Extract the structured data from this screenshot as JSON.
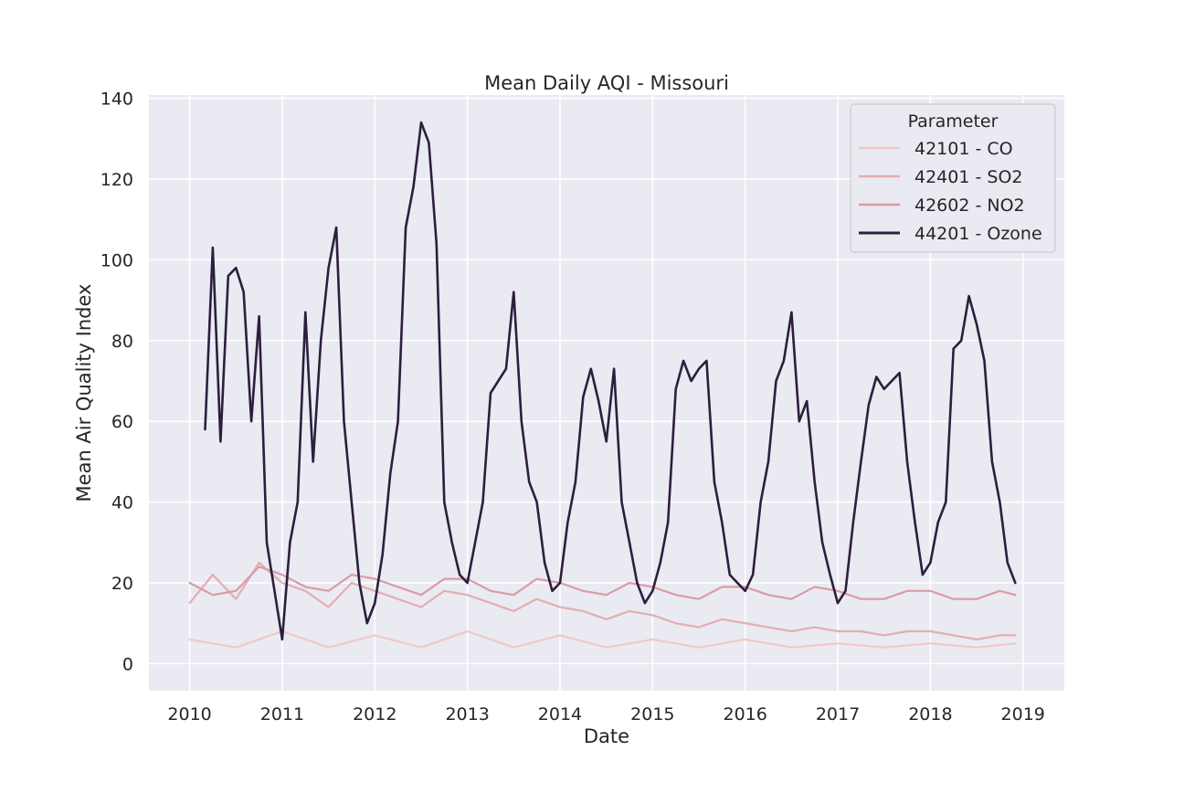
{
  "chart_data": {
    "type": "line",
    "title": "Mean Daily AQI - Missouri",
    "xlabel": "Date",
    "ylabel": "Mean Air Quality Index",
    "xlim": [
      "2009-07-23",
      "2019-06-12"
    ],
    "ylim": [
      -6.7,
      140.8
    ],
    "x_ticks": [
      "2010",
      "2011",
      "2012",
      "2013",
      "2014",
      "2015",
      "2016",
      "2017",
      "2018",
      "2019"
    ],
    "y_ticks": [
      "0",
      "20",
      "40",
      "60",
      "80",
      "100",
      "120",
      "140"
    ],
    "grid": true,
    "legend": {
      "title": "Parameter",
      "position": "top-right"
    },
    "background": "#eaeaf2",
    "series": [
      {
        "name": "42101 - CO",
        "color": "#efc9c6",
        "x": [
          "2010-01",
          "2010-07",
          "2011-01",
          "2011-07",
          "2012-01",
          "2012-07",
          "2013-01",
          "2013-07",
          "2014-01",
          "2014-07",
          "2015-01",
          "2015-07",
          "2016-01",
          "2016-07",
          "2017-01",
          "2017-07",
          "2018-01",
          "2018-07",
          "2018-12"
        ],
        "values": [
          6,
          4,
          8,
          4,
          7,
          4,
          8,
          4,
          7,
          4,
          6,
          4,
          6,
          4,
          5,
          4,
          5,
          4,
          5
        ]
      },
      {
        "name": "42401 - SO2",
        "color": "#e3adb1",
        "x": [
          "2010-01",
          "2010-04",
          "2010-07",
          "2010-10",
          "2011-01",
          "2011-04",
          "2011-07",
          "2011-10",
          "2012-01",
          "2012-04",
          "2012-07",
          "2012-10",
          "2013-01",
          "2013-04",
          "2013-07",
          "2013-10",
          "2014-01",
          "2014-04",
          "2014-07",
          "2014-10",
          "2015-01",
          "2015-04",
          "2015-07",
          "2015-10",
          "2016-01",
          "2016-04",
          "2016-07",
          "2016-10",
          "2017-01",
          "2017-04",
          "2017-07",
          "2017-10",
          "2018-01",
          "2018-04",
          "2018-07",
          "2018-10",
          "2018-12"
        ],
        "values": [
          15,
          22,
          16,
          25,
          20,
          18,
          14,
          20,
          18,
          16,
          14,
          18,
          17,
          15,
          13,
          16,
          14,
          13,
          11,
          13,
          12,
          10,
          9,
          11,
          10,
          9,
          8,
          9,
          8,
          8,
          7,
          8,
          8,
          7,
          6,
          7,
          7
        ]
      },
      {
        "name": "42602 - NO2",
        "color": "#d99ca7",
        "x": [
          "2010-01",
          "2010-04",
          "2010-07",
          "2010-10",
          "2011-01",
          "2011-04",
          "2011-07",
          "2011-10",
          "2012-01",
          "2012-04",
          "2012-07",
          "2012-10",
          "2013-01",
          "2013-04",
          "2013-07",
          "2013-10",
          "2014-01",
          "2014-04",
          "2014-07",
          "2014-10",
          "2015-01",
          "2015-04",
          "2015-07",
          "2015-10",
          "2016-01",
          "2016-04",
          "2016-07",
          "2016-10",
          "2017-01",
          "2017-04",
          "2017-07",
          "2017-10",
          "2018-01",
          "2018-04",
          "2018-07",
          "2018-10",
          "2018-12"
        ],
        "values": [
          20,
          17,
          18,
          24,
          22,
          19,
          18,
          22,
          21,
          19,
          17,
          21,
          21,
          18,
          17,
          21,
          20,
          18,
          17,
          20,
          19,
          17,
          16,
          19,
          19,
          17,
          16,
          19,
          18,
          16,
          16,
          18,
          18,
          16,
          16,
          18,
          17
        ]
      },
      {
        "name": "44201 - Ozone",
        "color": "#2d1e3e",
        "x": [
          "2010-03",
          "2010-04",
          "2010-05",
          "2010-06",
          "2010-07",
          "2010-08",
          "2010-09",
          "2010-10",
          "2010-11",
          "2010-12",
          "2011-01",
          "2011-02",
          "2011-03",
          "2011-04",
          "2011-05",
          "2011-06",
          "2011-07",
          "2011-08",
          "2011-09",
          "2011-10",
          "2011-11",
          "2011-12",
          "2012-01",
          "2012-02",
          "2012-03",
          "2012-04",
          "2012-05",
          "2012-06",
          "2012-07",
          "2012-08",
          "2012-09",
          "2012-10",
          "2012-11",
          "2012-12",
          "2013-01",
          "2013-02",
          "2013-03",
          "2013-04",
          "2013-05",
          "2013-06",
          "2013-07",
          "2013-08",
          "2013-09",
          "2013-10",
          "2013-11",
          "2013-12",
          "2014-01",
          "2014-02",
          "2014-03",
          "2014-04",
          "2014-05",
          "2014-06",
          "2014-07",
          "2014-08",
          "2014-09",
          "2014-10",
          "2014-11",
          "2014-12",
          "2015-01",
          "2015-02",
          "2015-03",
          "2015-04",
          "2015-05",
          "2015-06",
          "2015-07",
          "2015-08",
          "2015-09",
          "2015-10",
          "2015-11",
          "2015-12",
          "2016-01",
          "2016-02",
          "2016-03",
          "2016-04",
          "2016-05",
          "2016-06",
          "2016-07",
          "2016-08",
          "2016-09",
          "2016-10",
          "2016-11",
          "2016-12",
          "2017-01",
          "2017-02",
          "2017-03",
          "2017-04",
          "2017-05",
          "2017-06",
          "2017-07",
          "2017-08",
          "2017-09",
          "2017-10",
          "2017-11",
          "2017-12",
          "2018-01",
          "2018-02",
          "2018-03",
          "2018-04",
          "2018-05",
          "2018-06",
          "2018-07",
          "2018-08",
          "2018-09",
          "2018-10",
          "2018-11",
          "2018-12"
        ],
        "values": [
          58,
          103,
          55,
          96,
          98,
          92,
          60,
          86,
          30,
          18,
          6,
          30,
          40,
          87,
          50,
          80,
          98,
          108,
          60,
          40,
          20,
          10,
          15,
          27,
          47,
          60,
          108,
          118,
          134,
          129,
          104,
          40,
          30,
          22,
          20,
          30,
          40,
          67,
          70,
          73,
          92,
          60,
          45,
          40,
          25,
          18,
          20,
          35,
          45,
          66,
          73,
          65,
          55,
          73,
          40,
          30,
          20,
          15,
          18,
          25,
          35,
          68,
          75,
          70,
          73,
          75,
          45,
          35,
          22,
          20,
          18,
          22,
          40,
          50,
          70,
          75,
          87,
          60,
          65,
          45,
          30,
          22,
          15,
          18,
          35,
          50,
          64,
          71,
          68,
          70,
          72,
          50,
          35,
          22,
          25,
          35,
          40,
          78,
          80,
          91,
          84,
          75,
          50,
          40,
          25,
          20
        ]
      }
    ]
  }
}
